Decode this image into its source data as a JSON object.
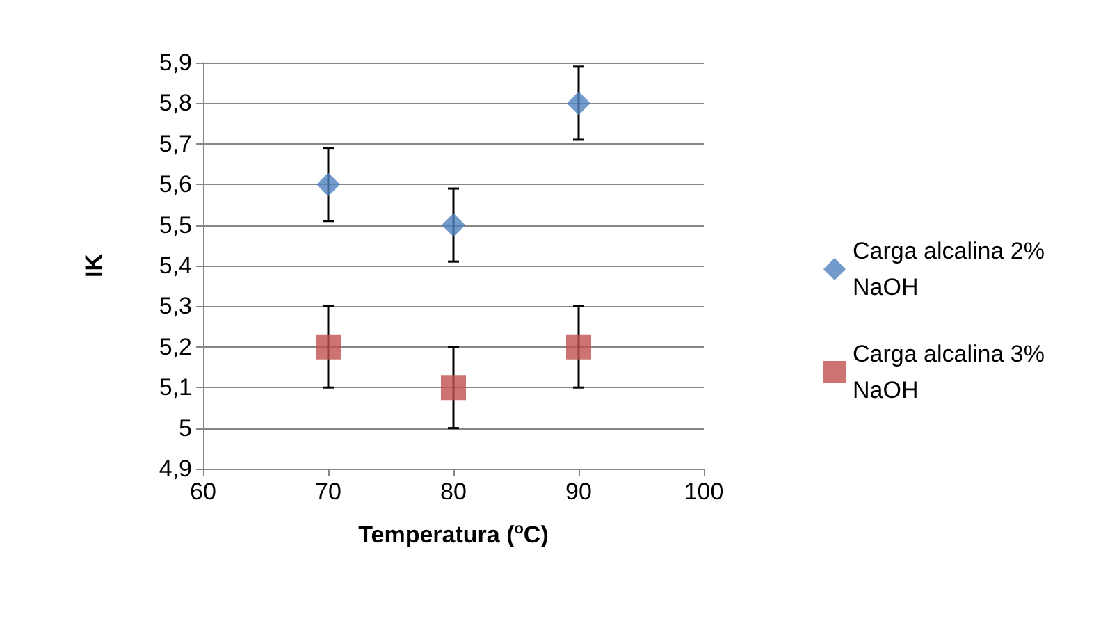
{
  "chart_data": {
    "type": "scatter",
    "xlabel": "Temperatura ($^{o}$C)",
    "ylabel": "IK",
    "xlim": [
      60,
      100
    ],
    "xticks": [
      60,
      70,
      80,
      90,
      100
    ],
    "ylim": [
      4.9,
      5.9
    ],
    "yticks": [
      {
        "value": 4.9,
        "label": "4,9"
      },
      {
        "value": 5,
        "label": "5"
      },
      {
        "value": 5.1,
        "label": "5,1"
      },
      {
        "value": 5.2,
        "label": "5,2"
      },
      {
        "value": 5.3,
        "label": "5,3"
      },
      {
        "value": 5.4,
        "label": "5,4"
      },
      {
        "value": 5.5,
        "label": "5,5"
      },
      {
        "value": 5.6,
        "label": "5,6"
      },
      {
        "value": 5.7,
        "label": "5,7"
      },
      {
        "value": 5.8,
        "label": "5,8"
      },
      {
        "value": 5.9,
        "label": "5,9"
      }
    ],
    "grid": "y",
    "legend": "right",
    "series": [
      {
        "name": "Carga alcalina 2% NaOH",
        "color": "#4f81bd",
        "marker": "diamond",
        "x": [
          70,
          80,
          90
        ],
        "values": [
          5.6,
          5.5,
          5.8
        ],
        "errors": [
          0.09,
          0.09,
          0.09
        ]
      },
      {
        "name": "Carga alcalina 3% NaOH",
        "color": "#c0504d",
        "marker": "square",
        "x": [
          70,
          80,
          90
        ],
        "values": [
          5.2,
          5.1,
          5.2
        ],
        "errors": [
          0.1,
          0.1,
          0.1
        ]
      }
    ]
  }
}
